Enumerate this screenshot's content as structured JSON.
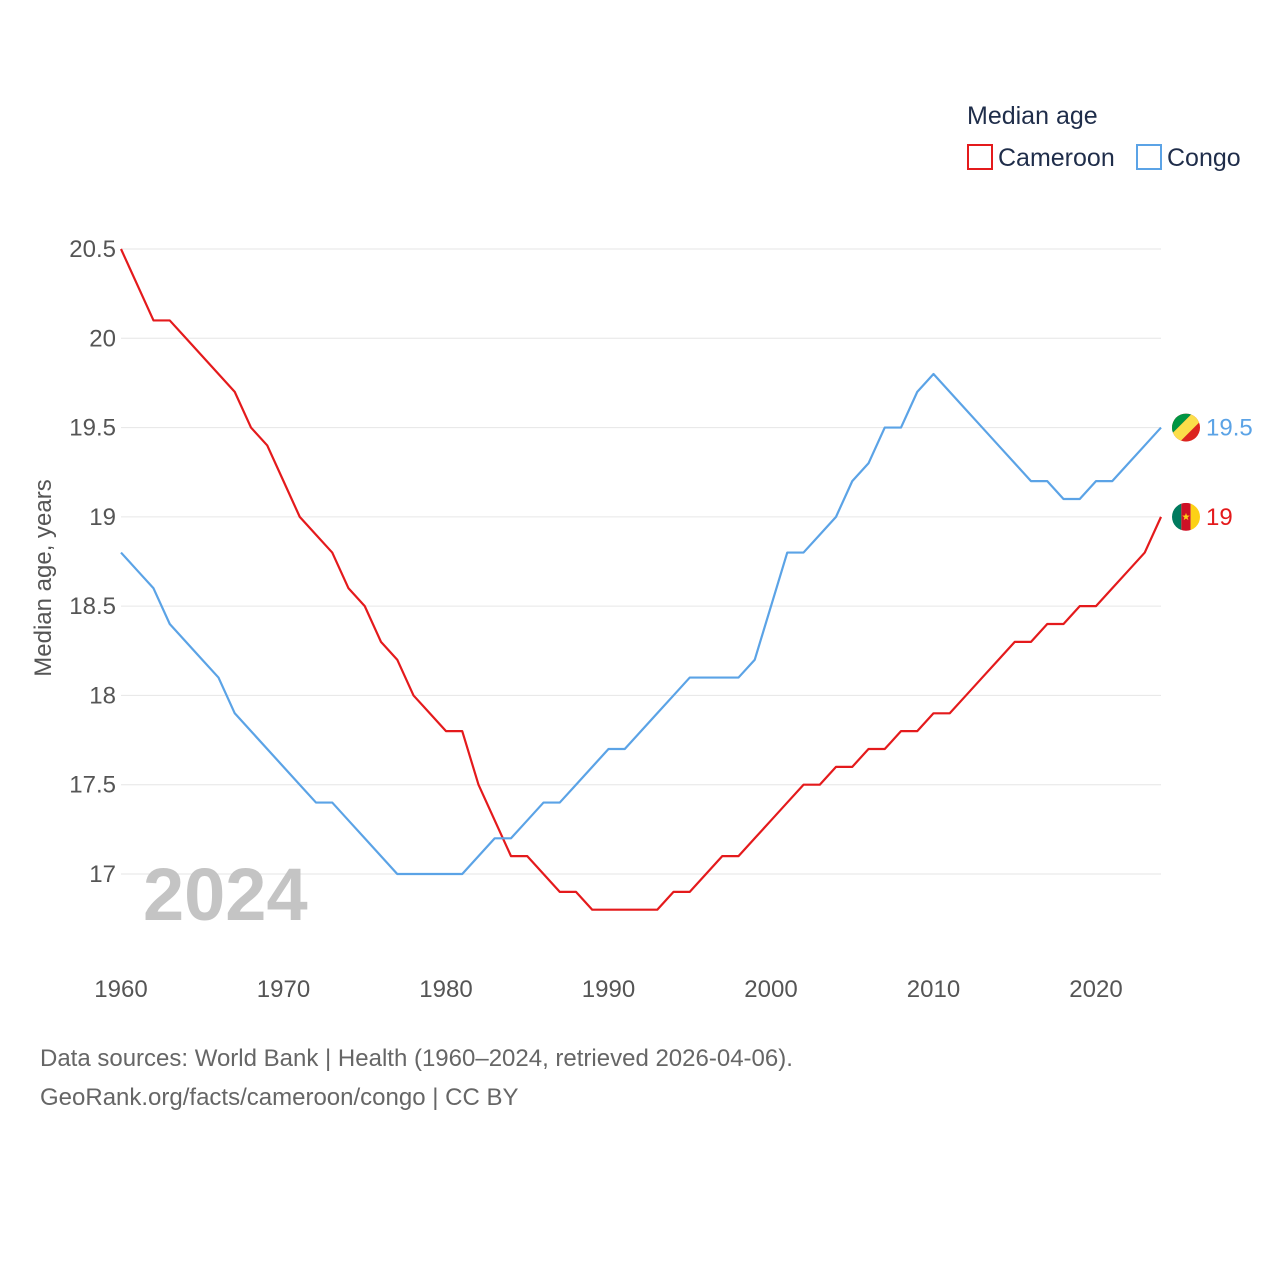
{
  "chart_data": {
    "type": "line",
    "ylabel": "Median age, years",
    "xlabel": "",
    "ylim": [
      16.6,
      20.6
    ],
    "xlim": [
      1960,
      2024
    ],
    "yticks": [
      17,
      17.5,
      18,
      18.5,
      19,
      19.5,
      20,
      20.5
    ],
    "xticks": [
      1960,
      1970,
      1980,
      1990,
      2000,
      2010,
      2020
    ],
    "ytick_labels": [
      "17",
      "17.5",
      "18",
      "18.5",
      "19",
      "19.5",
      "20",
      "20.5"
    ],
    "xtick_labels": [
      "1960",
      "1970",
      "1980",
      "1990",
      "2000",
      "2010",
      "2020"
    ],
    "grid": true,
    "legend": {
      "title": "Median age",
      "position": "top-right"
    },
    "year_label": "2024",
    "x": [
      1960,
      1961,
      1962,
      1963,
      1964,
      1965,
      1966,
      1967,
      1968,
      1969,
      1970,
      1971,
      1972,
      1973,
      1974,
      1975,
      1976,
      1977,
      1978,
      1979,
      1980,
      1981,
      1982,
      1983,
      1984,
      1985,
      1986,
      1987,
      1988,
      1989,
      1990,
      1991,
      1992,
      1993,
      1994,
      1995,
      1996,
      1997,
      1998,
      1999,
      2000,
      2001,
      2002,
      2003,
      2004,
      2005,
      2006,
      2007,
      2008,
      2009,
      2010,
      2011,
      2012,
      2013,
      2014,
      2015,
      2016,
      2017,
      2018,
      2019,
      2020,
      2021,
      2022,
      2023,
      2024
    ],
    "series": [
      {
        "name": "Cameroon",
        "color": "#e41a1c",
        "end_label": "19",
        "flag": "cameroon-flag",
        "values": [
          20.5,
          20.3,
          20.1,
          20.1,
          20.0,
          19.9,
          19.8,
          19.7,
          19.5,
          19.4,
          19.2,
          19.0,
          18.9,
          18.8,
          18.6,
          18.5,
          18.3,
          18.2,
          18.0,
          17.9,
          17.8,
          17.8,
          17.5,
          17.3,
          17.1,
          17.1,
          17.0,
          16.9,
          16.9,
          16.8,
          16.8,
          16.8,
          16.8,
          16.8,
          16.9,
          16.9,
          17.0,
          17.1,
          17.1,
          17.2,
          17.3,
          17.4,
          17.5,
          17.5,
          17.6,
          17.6,
          17.7,
          17.7,
          17.8,
          17.8,
          17.9,
          17.9,
          18.0,
          18.1,
          18.2,
          18.3,
          18.3,
          18.4,
          18.4,
          18.5,
          18.5,
          18.6,
          18.7,
          18.8,
          19.0
        ]
      },
      {
        "name": "Congo",
        "color": "#5ba3e6",
        "end_label": "19.5",
        "flag": "congo-flag",
        "values": [
          18.8,
          18.7,
          18.6,
          18.4,
          18.3,
          18.2,
          18.1,
          17.9,
          17.8,
          17.7,
          17.6,
          17.5,
          17.4,
          17.4,
          17.3,
          17.2,
          17.1,
          17.0,
          17.0,
          17.0,
          17.0,
          17.0,
          17.1,
          17.2,
          17.2,
          17.3,
          17.4,
          17.4,
          17.5,
          17.6,
          17.7,
          17.7,
          17.8,
          17.9,
          18.0,
          18.1,
          18.1,
          18.1,
          18.1,
          18.2,
          18.5,
          18.8,
          18.8,
          18.9,
          19.0,
          19.2,
          19.3,
          19.5,
          19.5,
          19.7,
          19.8,
          19.7,
          19.6,
          19.5,
          19.4,
          19.3,
          19.2,
          19.2,
          19.1,
          19.1,
          19.2,
          19.2,
          19.3,
          19.4,
          19.5
        ]
      }
    ]
  },
  "footer": {
    "source_line": "Data sources: World Bank | Health (1960–2024, retrieved 2026-04-06).",
    "credit_line": "GeoRank.org/facts/cameroon/congo | CC BY"
  }
}
